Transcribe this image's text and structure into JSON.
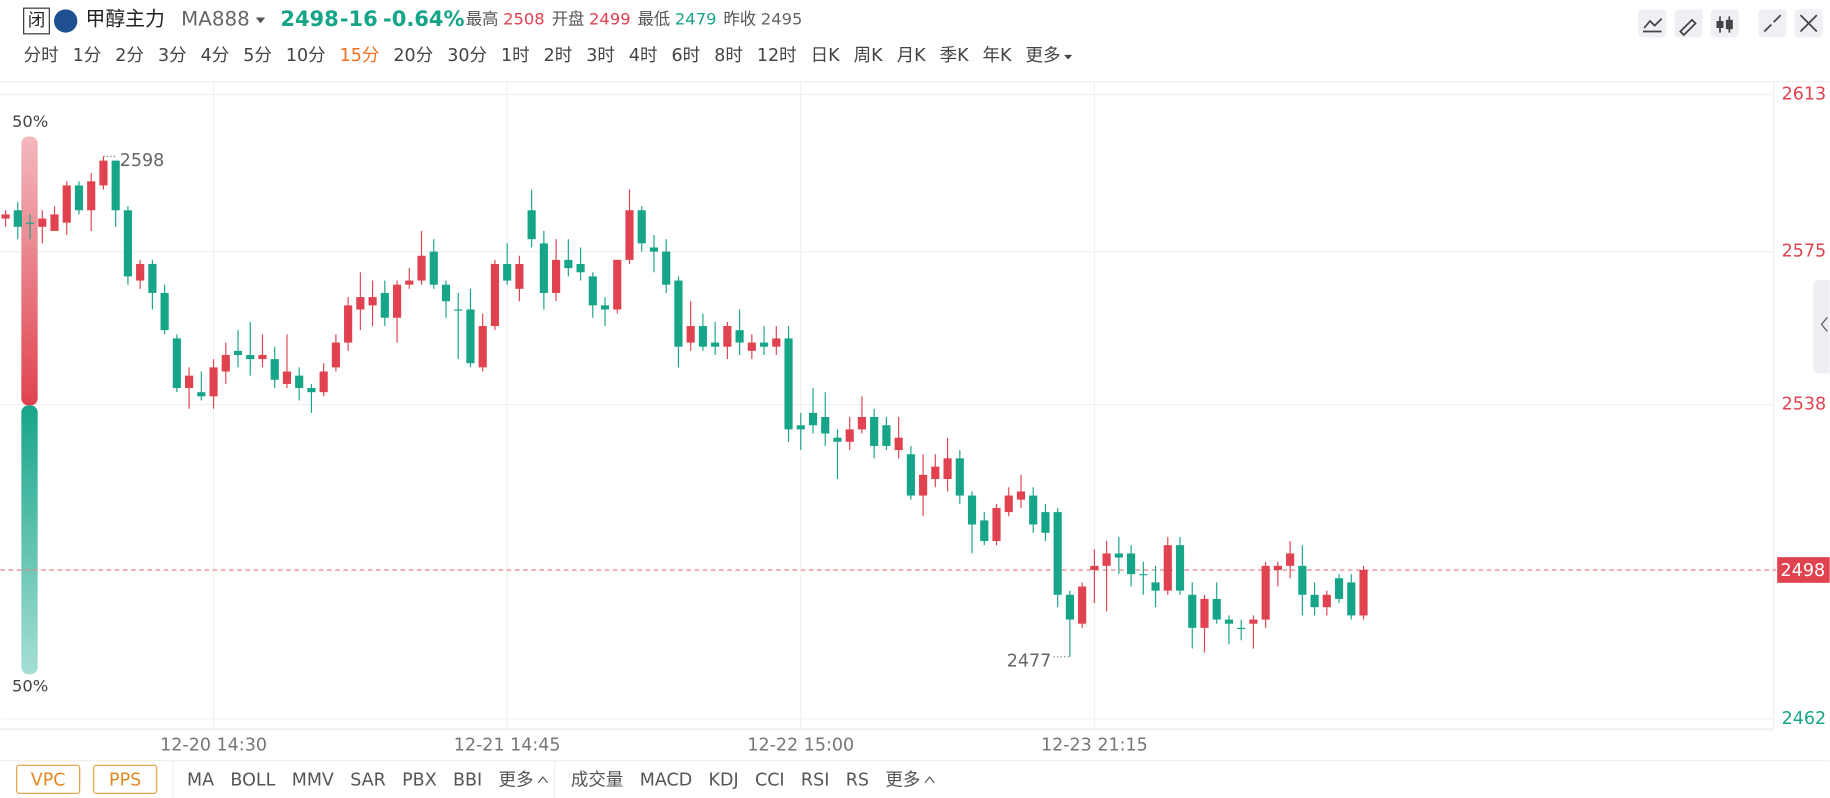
{
  "header": {
    "status_icon": "闭",
    "name": "甲醇主力",
    "code": "MA888",
    "price": "2498",
    "change": "-16",
    "change_pct": "-0.64%",
    "stats": [
      {
        "label": "最高",
        "value": "2508",
        "color": "#e0434f"
      },
      {
        "label": "开盘",
        "value": "2499",
        "color": "#e0434f"
      },
      {
        "label": "最低",
        "value": "2479",
        "color": "#17a589"
      },
      {
        "label": "昨收",
        "value": "2495",
        "color": "#666666"
      }
    ],
    "periods": [
      "分时",
      "1分",
      "2分",
      "3分",
      "4分",
      "5分",
      "10分",
      "15分",
      "20分",
      "30分",
      "1时",
      "2时",
      "3时",
      "4时",
      "6时",
      "8时",
      "12时",
      "日K",
      "周K",
      "月K",
      "季K",
      "年K",
      "更多"
    ],
    "active_period": 7
  },
  "footer": {
    "buttons": [
      "VPC",
      "PPS"
    ],
    "main_indicators": [
      "MA",
      "BOLL",
      "MMV",
      "SAR",
      "PBX",
      "BBI",
      "更多"
    ],
    "sub_indicators": [
      "成交量",
      "MACD",
      "KDJ",
      "CCI",
      "RSI",
      "RS",
      "更多"
    ]
  },
  "gauge": {
    "up": {
      "value": 50,
      "label": "50%"
    },
    "down": {
      "value": 50,
      "label": "50%"
    }
  },
  "chart_data": {
    "type": "candlestick",
    "up_color": "#e0434f",
    "down_color": "#17a589",
    "ylim": [
      2459.5,
      2616.1
    ],
    "yticks": [
      2613,
      2575,
      2538,
      2462
    ],
    "grid": true,
    "last_price": 2498,
    "high_label": 2598,
    "low_label": 2477,
    "categories": [
      null,
      null,
      null,
      null,
      null,
      null,
      null,
      null,
      null,
      null,
      null,
      null,
      null,
      null,
      null,
      null,
      null,
      "12-20 14:30",
      null,
      null,
      null,
      null,
      null,
      null,
      null,
      null,
      null,
      null,
      null,
      null,
      null,
      null,
      null,
      null,
      null,
      null,
      null,
      null,
      null,
      null,
      null,
      "12-21 14:45",
      null,
      null,
      null,
      null,
      null,
      null,
      null,
      null,
      null,
      null,
      null,
      null,
      null,
      null,
      null,
      null,
      null,
      null,
      null,
      null,
      null,
      null,
      null,
      "12-22 15:00",
      null,
      null,
      null,
      null,
      null,
      null,
      null,
      null,
      null,
      null,
      null,
      null,
      null,
      null,
      null,
      null,
      null,
      null,
      null,
      null,
      null,
      null,
      null,
      "12-23 21:15",
      null,
      null,
      null,
      null,
      null,
      null,
      null,
      null,
      null,
      null,
      null,
      null,
      null,
      null,
      null,
      null,
      null,
      null,
      null,
      null,
      null,
      null
    ],
    "ohlc": [
      [
        2583,
        2585,
        2581,
        2584
      ],
      [
        2585,
        2587,
        2578,
        2581
      ],
      [
        2582,
        2584,
        2578,
        2582
      ],
      [
        2581,
        2585,
        2577,
        2583
      ],
      [
        2580,
        2586,
        2580,
        2584
      ],
      [
        2582,
        2592,
        2579,
        2591
      ],
      [
        2591,
        2592,
        2584,
        2585
      ],
      [
        2585,
        2594,
        2580,
        2592
      ],
      [
        2591,
        2598,
        2590,
        2597
      ],
      [
        2597,
        2597,
        2581,
        2585
      ],
      [
        2585,
        2586,
        2567,
        2569
      ],
      [
        2568,
        2573,
        2566,
        2572
      ],
      [
        2572,
        2573,
        2561,
        2565
      ],
      [
        2565,
        2567,
        2555,
        2556
      ],
      [
        2554,
        2555,
        2541,
        2542
      ],
      [
        2542,
        2547,
        2537,
        2545
      ],
      [
        2541,
        2546,
        2539,
        2540
      ],
      [
        2540,
        2549,
        2537,
        2547
      ],
      [
        2546,
        2553,
        2543,
        2550
      ],
      [
        2551,
        2556,
        2547,
        2550
      ],
      [
        2550,
        2558,
        2545,
        2549
      ],
      [
        2549,
        2555,
        2547,
        2550
      ],
      [
        2549,
        2552,
        2542,
        2544
      ],
      [
        2543,
        2555,
        2542,
        2546
      ],
      [
        2545,
        2547,
        2539,
        2542
      ],
      [
        2542,
        2543,
        2536,
        2541
      ],
      [
        2541,
        2548,
        2540,
        2546
      ],
      [
        2547,
        2555,
        2546,
        2553
      ],
      [
        2553,
        2564,
        2551,
        2562
      ],
      [
        2561,
        2570,
        2556,
        2564
      ],
      [
        2562,
        2568,
        2557,
        2564
      ],
      [
        2565,
        2568,
        2557,
        2559
      ],
      [
        2559,
        2568,
        2553,
        2567
      ],
      [
        2567,
        2571,
        2566,
        2568
      ],
      [
        2568,
        2580,
        2567,
        2574
      ],
      [
        2575,
        2578,
        2566,
        2567
      ],
      [
        2567,
        2568,
        2559,
        2563
      ],
      [
        2561,
        2565,
        2549,
        2561
      ],
      [
        2561,
        2566,
        2547,
        2548
      ],
      [
        2547,
        2560,
        2546,
        2557
      ],
      [
        2557,
        2573,
        2556,
        2572
      ],
      [
        2572,
        2577,
        2567,
        2568
      ],
      [
        2566,
        2574,
        2563,
        2572
      ],
      [
        2585,
        2590,
        2576,
        2578
      ],
      [
        2577,
        2580,
        2561,
        2565
      ],
      [
        2565,
        2578,
        2563,
        2573
      ],
      [
        2573,
        2578,
        2569,
        2571
      ],
      [
        2572,
        2576,
        2568,
        2570
      ],
      [
        2569,
        2570,
        2559,
        2562
      ],
      [
        2562,
        2564,
        2557,
        2561
      ],
      [
        2561,
        2573,
        2560,
        2573
      ],
      [
        2573,
        2590,
        2572,
        2585
      ],
      [
        2585,
        2586,
        2575,
        2577
      ],
      [
        2576,
        2579,
        2570,
        2575
      ],
      [
        2575,
        2578,
        2565,
        2567
      ],
      [
        2568,
        2569,
        2547,
        2552
      ],
      [
        2553,
        2563,
        2551,
        2557
      ],
      [
        2557,
        2560,
        2551,
        2552
      ],
      [
        2553,
        2558,
        2550,
        2552
      ],
      [
        2552,
        2558,
        2549,
        2557
      ],
      [
        2556,
        2561,
        2550,
        2553
      ],
      [
        2551,
        2555,
        2549,
        2553
      ],
      [
        2553,
        2557,
        2550,
        2552
      ],
      [
        2552,
        2557,
        2550,
        2554
      ],
      [
        2554,
        2557,
        2529,
        2532
      ],
      [
        2533,
        2536,
        2527,
        2532
      ],
      [
        2536,
        2542,
        2531,
        2533
      ],
      [
        2535,
        2541,
        2528,
        2531
      ],
      [
        2530,
        2532,
        2520,
        2529
      ],
      [
        2529,
        2535,
        2527,
        2532
      ],
      [
        2532,
        2540,
        2531,
        2535
      ],
      [
        2535,
        2537,
        2525,
        2528
      ],
      [
        2533,
        2535,
        2527,
        2528
      ],
      [
        2527,
        2535,
        2525,
        2530
      ],
      [
        2526,
        2528,
        2515,
        2516
      ],
      [
        2516,
        2526,
        2511,
        2521
      ],
      [
        2520,
        2526,
        2518,
        2523
      ],
      [
        2520,
        2530,
        2517,
        2525
      ],
      [
        2525,
        2527,
        2514,
        2516
      ],
      [
        2516,
        2517,
        2502,
        2509
      ],
      [
        2510,
        2512,
        2504,
        2505
      ],
      [
        2505,
        2514,
        2504,
        2513
      ],
      [
        2512,
        2518,
        2511,
        2516
      ],
      [
        2515,
        2521,
        2513,
        2517
      ],
      [
        2516,
        2518,
        2507,
        2509
      ],
      [
        2512,
        2514,
        2505,
        2507
      ],
      [
        2512,
        2513,
        2489,
        2492
      ],
      [
        2492,
        2493,
        2477,
        2486
      ],
      [
        2485,
        2495,
        2484,
        2494
      ],
      [
        2498,
        2503,
        2490,
        2499
      ],
      [
        2499,
        2505,
        2488,
        2502
      ],
      [
        2502,
        2506,
        2497,
        2501
      ],
      [
        2502,
        2504,
        2494,
        2497
      ],
      [
        2497,
        2500,
        2492,
        2497
      ],
      [
        2495,
        2499,
        2489,
        2493
      ],
      [
        2493,
        2506,
        2492,
        2504
      ],
      [
        2504,
        2506,
        2492,
        2493
      ],
      [
        2492,
        2495,
        2479,
        2484
      ],
      [
        2484,
        2492,
        2478,
        2491
      ],
      [
        2491,
        2495,
        2485,
        2486
      ],
      [
        2486,
        2487,
        2480,
        2485
      ],
      [
        2484,
        2486,
        2481,
        2484
      ],
      [
        2485,
        2487,
        2479,
        2486
      ],
      [
        2486,
        2500,
        2484,
        2499
      ],
      [
        2498,
        2500,
        2494,
        2499
      ],
      [
        2499,
        2505,
        2496,
        2502
      ],
      [
        2499,
        2504,
        2487,
        2492
      ],
      [
        2492,
        2495,
        2487,
        2489
      ],
      [
        2489,
        2493,
        2487,
        2492
      ],
      [
        2496,
        2497,
        2490,
        2491
      ],
      [
        2495,
        2497,
        2486,
        2487
      ],
      [
        2487,
        2499,
        2486,
        2498
      ]
    ]
  }
}
